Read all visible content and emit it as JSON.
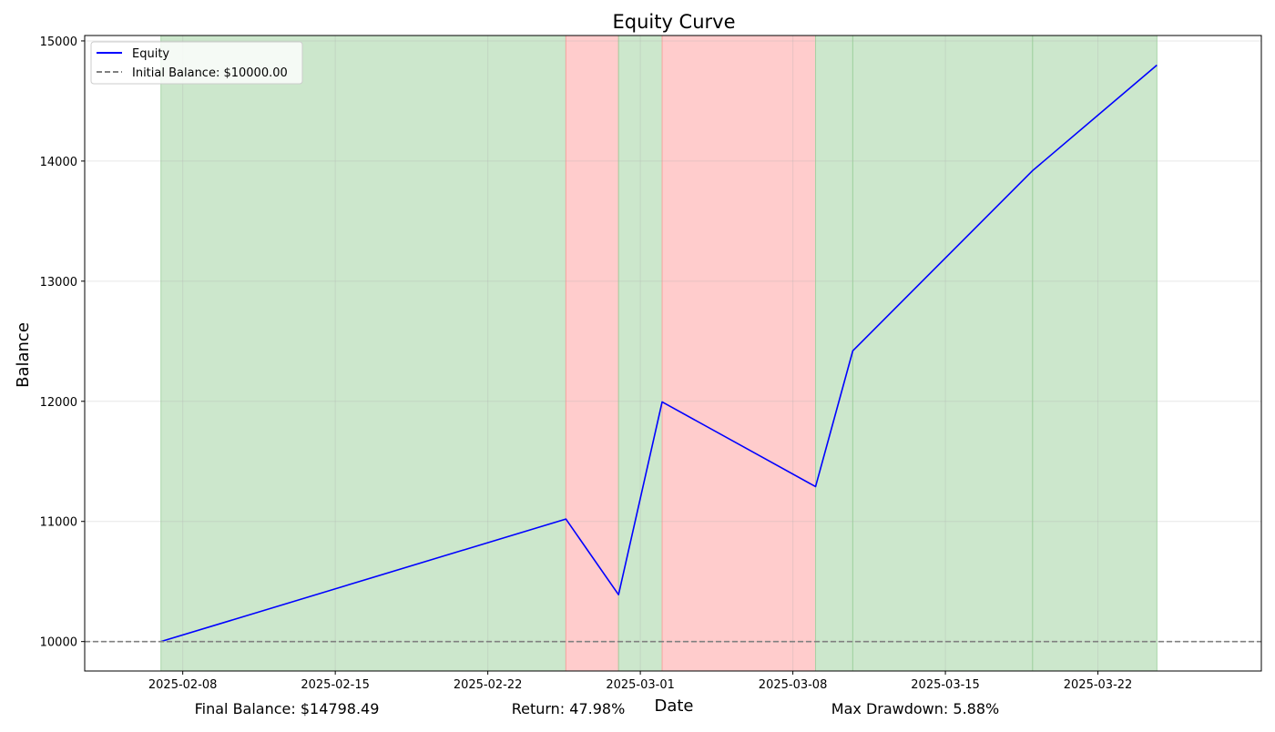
{
  "chart_data": {
    "type": "line",
    "title": "Equity Curve",
    "xlabel": "Date",
    "ylabel": "Balance",
    "x_axis": {
      "type": "date",
      "ticks": [
        "2025-02-08",
        "2025-02-15",
        "2025-02-22",
        "2025-03-01",
        "2025-03-08",
        "2025-03-15",
        "2025-03-22"
      ],
      "range": [
        "2025-02-03 12:00",
        "2025-03-29 12:00"
      ]
    },
    "y_axis": {
      "ticks": [
        10000,
        11000,
        12000,
        13000,
        14000,
        15000
      ],
      "ylim": [
        9755,
        15045
      ]
    },
    "grid": true,
    "legend_position": "upper-left",
    "series": [
      {
        "name": "Equity",
        "color": "#0000ff",
        "style": "solid",
        "points": [
          {
            "x": "2025-02-07",
            "y": 10000
          },
          {
            "x": "2025-02-25 14:00",
            "y": 11020
          },
          {
            "x": "2025-02-28",
            "y": 10390
          },
          {
            "x": "2025-03-02",
            "y": 11995
          },
          {
            "x": "2025-03-09 01:00",
            "y": 11290
          },
          {
            "x": "2025-03-10 18:00",
            "y": 12420
          },
          {
            "x": "2025-03-19",
            "y": 13920
          },
          {
            "x": "2025-03-24 17:00",
            "y": 14798.49
          }
        ]
      },
      {
        "name": "Initial Balance: $10000.00",
        "color": "#808080",
        "style": "dashed",
        "value": 10000
      }
    ],
    "shaded_regions": [
      {
        "start": "2025-02-07",
        "end": "2025-02-25 14:00",
        "result": "win",
        "color": "#a3d3a3"
      },
      {
        "start": "2025-02-25 14:00",
        "end": "2025-02-28",
        "result": "loss",
        "color": "#ffa3a3"
      },
      {
        "start": "2025-02-28",
        "end": "2025-03-02",
        "result": "win",
        "color": "#a3d3a3"
      },
      {
        "start": "2025-03-02",
        "end": "2025-03-09 01:00",
        "result": "loss",
        "color": "#ffa3a3"
      },
      {
        "start": "2025-03-09 01:00",
        "end": "2025-03-10 18:00",
        "result": "win",
        "color": "#a3d3a3"
      },
      {
        "start": "2025-03-10 18:00",
        "end": "2025-03-19",
        "result": "win",
        "color": "#a3d3a3"
      },
      {
        "start": "2025-03-19",
        "end": "2025-03-24 17:00",
        "result": "win",
        "color": "#a3d3a3"
      }
    ]
  },
  "stats": {
    "final_balance": "Final Balance: $14798.49",
    "return": "Return: 47.98%",
    "max_drawdown": "Max Drawdown: 5.88%"
  }
}
